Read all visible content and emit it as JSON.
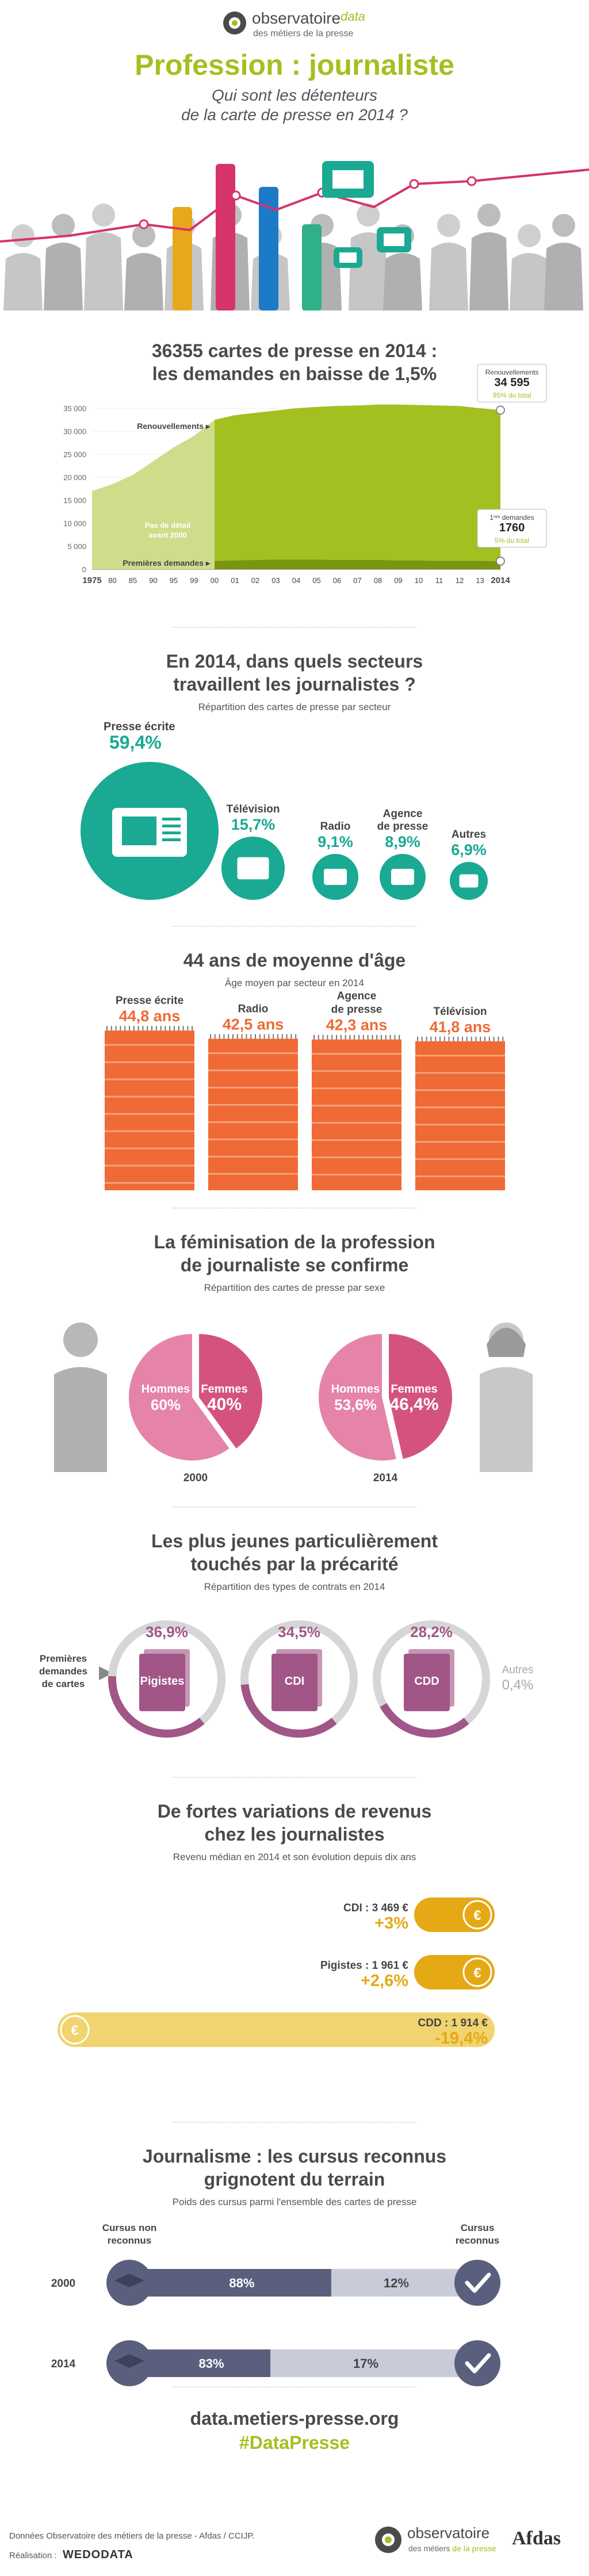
{
  "header": {
    "logo_main": "observatoire",
    "logo_data": "data",
    "logo_sub": "des métiers de la presse",
    "title": "Profession : journaliste",
    "subtitle_line1": "Qui sont les détenteurs",
    "subtitle_line2": "de la carte de presse en 2014 ?"
  },
  "cards": {
    "title_line1": "36355 cartes de presse en 2014 :",
    "title_line2": "les demandes en baisse de 1,5%",
    "renewals_label": "Renouvellements",
    "first_label": "Premières demandes",
    "no_detail_line1": "Pas de détail",
    "no_detail_line2": "avant 2000",
    "callout_renew_title": "Renouvellements",
    "callout_renew_value": "34 595",
    "callout_renew_pct": "95% du total",
    "callout_first_title": "1ʳᵉˢ demandes",
    "callout_first_value": "1760",
    "callout_first_pct": "5% du total"
  },
  "sectors": {
    "title_line1": "En 2014, dans quels secteurs",
    "title_line2": "travaillent les journalistes ?",
    "subtitle": "Répartition des cartes de presse par secteur",
    "items": [
      {
        "label": "Presse écrite",
        "value": "59,4%"
      },
      {
        "label": "Télévision",
        "value": "15,7%"
      },
      {
        "label": "Radio",
        "value": "9,1%"
      },
      {
        "label": "Agence de presse",
        "value": "8,9%"
      },
      {
        "label": "Autres",
        "value": "6,9%"
      }
    ]
  },
  "age": {
    "title": "44 ans de moyenne d'âge",
    "subtitle": "Âge moyen par secteur en 2014",
    "items": [
      {
        "label": "Presse écrite",
        "value": "44,8 ans"
      },
      {
        "label": "Radio",
        "value": "42,5 ans"
      },
      {
        "label": "Agence de presse",
        "value": "42,3 ans"
      },
      {
        "label": "Télévision",
        "value": "41,8 ans"
      }
    ]
  },
  "gender": {
    "title_line1": "La féminisation de la profession",
    "title_line2": "de journaliste se confirme",
    "subtitle": "Répartition des cartes de presse par sexe",
    "men_label": "Hommes",
    "women_label": "Femmes",
    "y2000": {
      "year": "2000",
      "men": "60%",
      "women": "40%"
    },
    "y2014": {
      "year": "2014",
      "men": "53,6%",
      "women": "46,4%"
    }
  },
  "contracts": {
    "title_line1": "Les plus jeunes particulièrement",
    "title_line2": "touchés par la précarité",
    "subtitle": "Répartition des types de contrats en 2014",
    "side_label_1": "Premières",
    "side_label_2": "demandes",
    "side_label_3": "de cartes",
    "items": [
      {
        "label": "Pigistes",
        "value": "36,9%"
      },
      {
        "label": "CDI",
        "value": "34,5%"
      },
      {
        "label": "CDD",
        "value": "28,2%"
      }
    ],
    "other_label": "Autres",
    "other_value": "0,4%"
  },
  "income": {
    "title_line1": "De fortes variations de revenus",
    "title_line2": "chez les journalistes",
    "subtitle": "Revenu médian en 2014 et son évolution depuis dix ans",
    "items": [
      {
        "label": "CDI : 3 469 €",
        "change": "+3%"
      },
      {
        "label": "Pigistes : 1 961 €",
        "change": "+2,6%"
      },
      {
        "label": "CDD : 1 914 €",
        "change": "-19,4%"
      }
    ]
  },
  "cursus": {
    "title_line1": "Journalisme : les cursus reconnus",
    "title_line2": "grignotent du terrain",
    "subtitle": "Poids des cursus parmi l'ensemble des cartes de presse",
    "left_head_1": "Cursus non",
    "left_head_2": "reconnus",
    "right_head_1": "Cursus",
    "right_head_2": "reconnus",
    "rows": [
      {
        "year": "2000",
        "non": "88%",
        "rec": "12%"
      },
      {
        "year": "2014",
        "non": "83%",
        "rec": "17%"
      }
    ]
  },
  "footer": {
    "url": "data.metiers-presse.org",
    "hashtag": "#DataPresse",
    "source": "Données Observatoire des métiers de la presse - Afdas / CCIJP.",
    "realisation": "Réalisation :",
    "realisation_brand": "WEDODATA",
    "logo_main": "observatoire",
    "logo_sub_1": "des métiers",
    "logo_sub_2": "de la presse",
    "afdas": "Afdas"
  },
  "chart_data": [
    {
      "type": "area",
      "title": "36355 cartes de presse en 2014 : les demandes en baisse de 1,5%",
      "x": [
        "1975",
        "80",
        "85",
        "90",
        "95",
        "99",
        "00",
        "01",
        "02",
        "03",
        "04",
        "05",
        "06",
        "07",
        "08",
        "09",
        "10",
        "11",
        "12",
        "13",
        "2014"
      ],
      "ylim": [
        0,
        35000
      ],
      "yticks": [
        "0",
        "5 000",
        "10 000",
        "15 000",
        "20 000",
        "25 000",
        "30 000",
        "35 000"
      ],
      "series": [
        {
          "name": "Renouvellements",
          "values": [
            17000,
            18500,
            20500,
            23500,
            26500,
            29000,
            32500,
            33500,
            34000,
            34500,
            35000,
            35300,
            35500,
            35600,
            35800,
            35800,
            35700,
            35600,
            35500,
            35000,
            34595
          ]
        },
        {
          "name": "Premières demandes",
          "values": [
            null,
            null,
            null,
            null,
            null,
            null,
            1800,
            1900,
            2000,
            2100,
            2100,
            2100,
            2000,
            2000,
            2000,
            1900,
            1900,
            1800,
            1800,
            1800,
            1760
          ]
        }
      ]
    },
    {
      "type": "pie",
      "title": "En 2014, dans quels secteurs travaillent les journalistes ?",
      "categories": [
        "Presse écrite",
        "Télévision",
        "Radio",
        "Agence de presse",
        "Autres"
      ],
      "values": [
        59.4,
        15.7,
        9.1,
        8.9,
        6.9
      ]
    },
    {
      "type": "bar",
      "title": "44 ans de moyenne d'âge",
      "categories": [
        "Presse écrite",
        "Radio",
        "Agence de presse",
        "Télévision"
      ],
      "values": [
        44.8,
        42.5,
        42.3,
        41.8
      ]
    },
    {
      "type": "pie",
      "title": "La féminisation de la profession de journaliste se confirme",
      "categories": [
        "Hommes",
        "Femmes"
      ],
      "series": [
        {
          "name": "2000",
          "values": [
            60,
            40
          ]
        },
        {
          "name": "2014",
          "values": [
            53.6,
            46.4
          ]
        }
      ]
    },
    {
      "type": "pie",
      "title": "Les plus jeunes particulièrement touchés par la précarité",
      "categories": [
        "Pigistes",
        "CDI",
        "CDD",
        "Autres"
      ],
      "values": [
        36.9,
        34.5,
        28.2,
        0.4
      ]
    },
    {
      "type": "bar",
      "title": "De fortes variations de revenus chez les journalistes",
      "categories": [
        "CDI",
        "Pigistes",
        "CDD"
      ],
      "values": [
        3469,
        1961,
        1914
      ],
      "change_pct": [
        3,
        2.6,
        -19.4
      ]
    },
    {
      "type": "bar",
      "title": "Journalisme : les cursus reconnus grignotent du terrain",
      "categories": [
        "2000",
        "2014"
      ],
      "series": [
        {
          "name": "Cursus non reconnus",
          "values": [
            88,
            83
          ]
        },
        {
          "name": "Cursus reconnus",
          "values": [
            12,
            17
          ]
        }
      ]
    }
  ],
  "colors": {
    "green": "#a3c021",
    "light_green": "#cfdc8a",
    "teal": "#1aa992",
    "orange": "#ef6a35",
    "pink": "#d4537e",
    "purple": "#a15687",
    "gold": "#e5a915",
    "slate": "#5a5f7e"
  }
}
